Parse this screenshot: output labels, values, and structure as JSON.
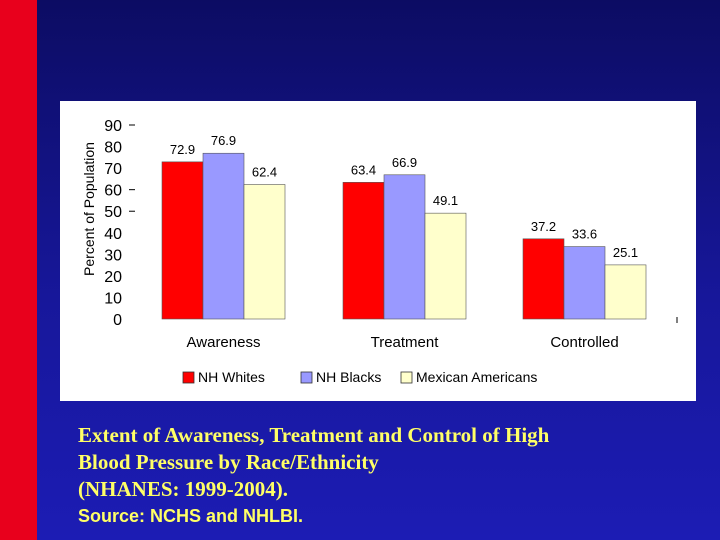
{
  "colors": {
    "red_strip": "#e8001c",
    "caption": "#ffff66"
  },
  "caption": {
    "line1": "Extent of Awareness, Treatment and Control of High",
    "line2": "Blood Pressure by Race/Ethnicity",
    "line3": "(NHANES: 1999-2004)."
  },
  "source": "Source: NCHS and NHLBI.",
  "chart_data": {
    "type": "bar",
    "title": "",
    "xlabel": "",
    "ylabel": "Percent of Population",
    "ylim": [
      0,
      90
    ],
    "yticks": [
      "0",
      "10",
      "20",
      "30",
      "40",
      "50",
      "60",
      "70",
      "80",
      "90"
    ],
    "categories": [
      "Awareness",
      "Treatment",
      "Controlled"
    ],
    "series": [
      {
        "name": "NH Whites",
        "color": "#ff0000",
        "values": [
          72.9,
          63.4,
          37.2
        ],
        "labels": [
          "72.9",
          "63.4",
          "37.2"
        ]
      },
      {
        "name": "NH Blacks",
        "color": "#9999ff",
        "values": [
          76.9,
          66.9,
          33.6
        ],
        "labels": [
          "76.9",
          "66.9",
          "33.6"
        ]
      },
      {
        "name": "Mexican Americans",
        "color": "#ffffcc",
        "values": [
          62.4,
          49.1,
          25.1
        ],
        "labels": [
          "62.4",
          "49.1",
          "25.1"
        ]
      }
    ],
    "legend_position": "bottom",
    "grid": false
  }
}
